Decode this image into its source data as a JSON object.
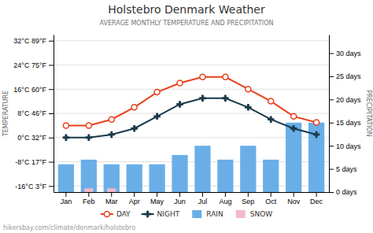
{
  "chart_data": {
    "type": "line",
    "title": "Holstebro Denmark Weather",
    "subtitle": "AVERAGE MONTHLY TEMPERATURE AND PRECIPITATION",
    "y_label": "TEMPERATURE",
    "y2_label": "PRECIPITATION",
    "categories": [
      "Jan",
      "Feb",
      "Mar",
      "Apr",
      "May",
      "Jun",
      "Jul",
      "Aug",
      "Sep",
      "Oct",
      "Nov",
      "Dec"
    ],
    "series": [
      {
        "name": "DAY",
        "type": "line",
        "color": "#e8401c",
        "marker": "circle",
        "values": [
          4,
          4,
          6,
          10,
          15,
          18,
          20,
          20,
          16,
          12,
          7,
          5
        ]
      },
      {
        "name": "NIGHT",
        "type": "line",
        "color": "#1a3a4a",
        "marker": "plus",
        "values": [
          0,
          0,
          1,
          3,
          7,
          11,
          13,
          13,
          10,
          6,
          3,
          1
        ]
      },
      {
        "name": "RAIN",
        "type": "bar",
        "axis": "y2",
        "color": "#6aaee8",
        "values": [
          6,
          7,
          6,
          6,
          6,
          8,
          10,
          7,
          10,
          7,
          15,
          15
        ]
      },
      {
        "name": "SNOW",
        "type": "bar",
        "axis": "y2",
        "color": "#f4b8cc",
        "values": [
          0,
          0.8,
          0.8,
          0,
          0,
          0,
          0,
          0,
          0,
          0,
          0,
          0
        ]
      }
    ],
    "ylim": [
      -18,
      34
    ],
    "yticks": [
      {
        "value": -16,
        "label": "-16°C 3°F"
      },
      {
        "value": -8,
        "label": "-8°C 17°F"
      },
      {
        "value": 0,
        "label": "0°C 32°F"
      },
      {
        "value": 8,
        "label": "8°C 46°F"
      },
      {
        "value": 16,
        "label": "16°C 60°F"
      },
      {
        "value": 24,
        "label": "24°C 75°F"
      },
      {
        "value": 32,
        "label": "32°C 89°F"
      }
    ],
    "y2lim": [
      0,
      34
    ],
    "y2ticks": [
      {
        "value": 0,
        "label": "0 days"
      },
      {
        "value": 5,
        "label": "5 days"
      },
      {
        "value": 10,
        "label": "10 days"
      },
      {
        "value": 15,
        "label": "15 days"
      },
      {
        "value": 20,
        "label": "20 days"
      },
      {
        "value": 25,
        "label": "25 days"
      },
      {
        "value": 30,
        "label": "30 days"
      }
    ],
    "grid": true,
    "legend": "bottom",
    "annotations": [
      "hikersbay.com/climate/denmark/holstebro"
    ]
  }
}
